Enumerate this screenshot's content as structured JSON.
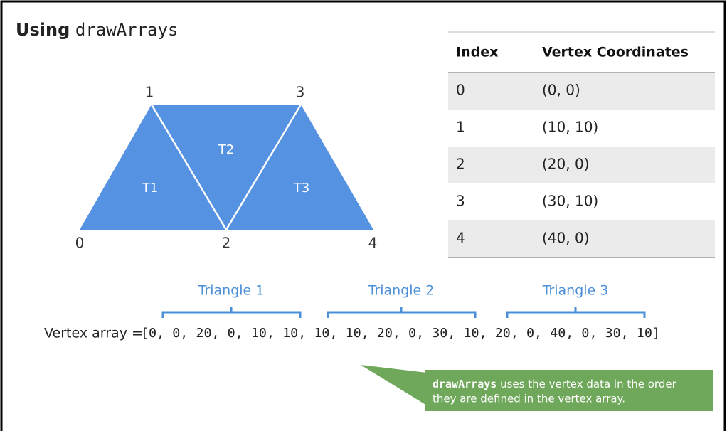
{
  "title": {
    "prefix": "Using",
    "code": "drawArrays"
  },
  "diagram": {
    "vertices": [
      "0",
      "1",
      "2",
      "3",
      "4"
    ],
    "triangles": [
      "T1",
      "T2",
      "T3"
    ]
  },
  "table": {
    "header": [
      "Index",
      "Vertex Coordinates"
    ],
    "rows": [
      [
        "0",
        "(0, 0)"
      ],
      [
        "1",
        "(10, 10)"
      ],
      [
        "2",
        "(20, 0)"
      ],
      [
        "3",
        "(30, 10)"
      ],
      [
        "4",
        "(40, 0)"
      ]
    ]
  },
  "groups": [
    "Triangle 1",
    "Triangle 2",
    "Triangle 3"
  ],
  "vertex_array": {
    "label": "Vertex array =",
    "array": "[0, 0, 20, 0, 10, 10, 10, 10, 20, 0, 30, 10, 20, 0, 40, 0, 30, 10]"
  },
  "callout": {
    "code": "drawArrays",
    "line1": "uses the vertex data in the order",
    "line2": "they are defined in the vertex array."
  }
}
